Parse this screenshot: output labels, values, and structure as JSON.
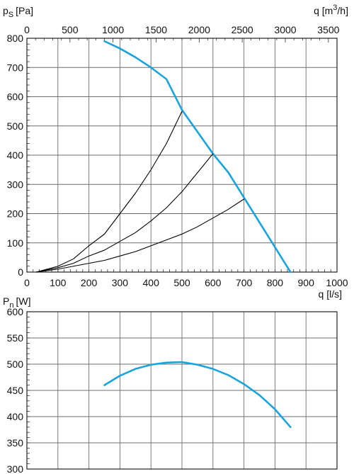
{
  "chart_data": [
    {
      "type": "line",
      "title": "",
      "ylabel_main": "p",
      "ylabel_sub": "S",
      "ylabel_unit": "[Pa]",
      "xlabel_bottom": "q [l/s]",
      "xlabel_top_main": "q [m",
      "xlabel_top_sup": "3",
      "xlabel_top_end": "/h]",
      "xlim": [
        0,
        1000
      ],
      "ylim": [
        0,
        800
      ],
      "x_ticks": [
        0,
        100,
        200,
        300,
        400,
        500,
        600,
        700,
        800,
        900,
        1000
      ],
      "x_tick_labels": [
        "0",
        "100",
        "200",
        "300",
        "400",
        "500",
        "600",
        "700",
        "800",
        "900",
        "1000"
      ],
      "y_ticks": [
        0,
        100,
        200,
        300,
        400,
        500,
        600,
        700,
        800
      ],
      "y_tick_labels": [
        "0",
        "100",
        "200",
        "300",
        "400",
        "500",
        "600",
        "700",
        "800"
      ],
      "top_ticks_m3h": [
        0,
        500,
        1000,
        1500,
        2000,
        2500,
        3000,
        3500
      ],
      "top_tick_labels": [
        "0",
        "500",
        "1000",
        "1500",
        "2000",
        "2500",
        "3000",
        "3500"
      ],
      "grid": true,
      "series": [
        {
          "color": "#1aa3dc",
          "x": [
            250,
            300,
            350,
            400,
            450,
            500,
            550,
            600,
            650,
            700,
            750,
            800,
            850
          ],
          "y": [
            790,
            765,
            735,
            700,
            660,
            555,
            480,
            405,
            340,
            255,
            170,
            85,
            0
          ]
        },
        {
          "color": "#000000",
          "x": [
            30,
            100,
            150,
            200,
            250,
            300,
            350,
            400,
            450,
            500
          ],
          "y": [
            0,
            20,
            45,
            90,
            130,
            200,
            270,
            350,
            440,
            550
          ]
        },
        {
          "color": "#000000",
          "x": [
            30,
            100,
            150,
            200,
            250,
            300,
            350,
            400,
            450,
            500,
            550,
            600
          ],
          "y": [
            0,
            15,
            30,
            55,
            75,
            105,
            135,
            175,
            220,
            275,
            340,
            405
          ]
        },
        {
          "color": "#000000",
          "x": [
            30,
            100,
            150,
            200,
            250,
            300,
            350,
            400,
            450,
            500,
            550,
            600,
            650,
            700
          ],
          "y": [
            0,
            10,
            20,
            30,
            40,
            55,
            70,
            90,
            110,
            130,
            155,
            185,
            215,
            250
          ]
        }
      ]
    },
    {
      "type": "line",
      "title": "",
      "ylabel_main": "P",
      "ylabel_sub": "n",
      "ylabel_unit": "[W]",
      "xlim": [
        0,
        1000
      ],
      "ylim": [
        300,
        600
      ],
      "y_ticks": [
        300,
        350,
        400,
        450,
        500,
        550,
        600
      ],
      "y_tick_labels": [
        "300",
        "350",
        "400",
        "450",
        "500",
        "550",
        "600"
      ],
      "x_grid": [
        0,
        100,
        200,
        300,
        400,
        500,
        600,
        700,
        800,
        900,
        1000
      ],
      "grid": true,
      "series": [
        {
          "color": "#1aa3dc",
          "x": [
            250,
            300,
            350,
            400,
            450,
            500,
            550,
            600,
            650,
            700,
            750,
            800,
            850
          ],
          "y": [
            460,
            478,
            491,
            499,
            503,
            504,
            499,
            491,
            479,
            462,
            441,
            414,
            380
          ]
        }
      ]
    }
  ]
}
